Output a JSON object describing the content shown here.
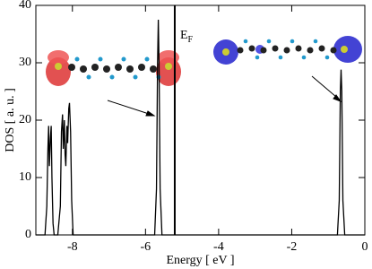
{
  "chart_data": {
    "type": "line",
    "xlabel": "Energy [ eV ]",
    "ylabel": "DOS [ a. u. ]",
    "x": [
      -9,
      -8.75,
      -8.7,
      -8.67,
      -8.65,
      -8.63,
      -8.6,
      -8.58,
      -8.56,
      -8.53,
      -8.5,
      -8.4,
      -8.33,
      -8.3,
      -8.27,
      -8.25,
      -8.22,
      -8.2,
      -8.18,
      -8.15,
      -8.13,
      -8.1,
      -8.08,
      -8.05,
      -8.02,
      -7.98,
      -5.75,
      -5.7,
      -5.67,
      -5.65,
      -5.63,
      -5.6,
      -5.55,
      -0.75,
      -0.7,
      -0.67,
      -0.65,
      -0.63,
      -0.6,
      -0.55,
      0
    ],
    "values": [
      0,
      0,
      5,
      15,
      19,
      12,
      17,
      19,
      10,
      2,
      0,
      0,
      5,
      18,
      21,
      15,
      20,
      14,
      12,
      19,
      16,
      22,
      23,
      18,
      6,
      0,
      0,
      8,
      30,
      37.5,
      30,
      8,
      0,
      0,
      6,
      25,
      28.8,
      25,
      6,
      0,
      0
    ],
    "color": "#000000",
    "xlim": [
      -9,
      0
    ],
    "xticks": [
      -8,
      -6,
      -4,
      -2,
      0
    ],
    "ylim": [
      0,
      40
    ],
    "yticks": [
      0,
      10,
      20,
      30,
      40
    ],
    "annotations": [
      {
        "text": "E",
        "subscript": "F",
        "x": -5.2
      }
    ]
  }
}
